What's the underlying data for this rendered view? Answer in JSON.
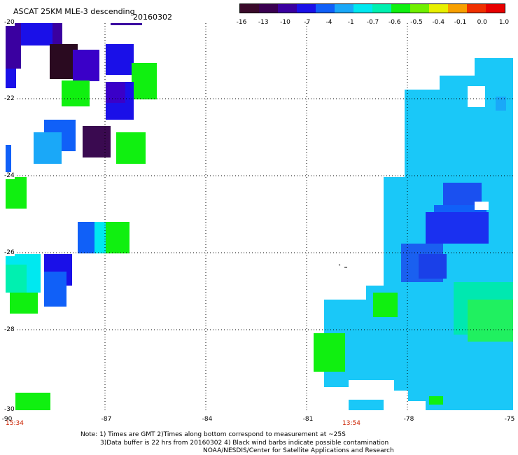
{
  "header": {
    "title": "ASCAT 25KM MLE-3 descending",
    "date": "20160302"
  },
  "colorbar": {
    "labels": [
      "-16",
      "-13",
      "-10",
      "-7",
      "-4",
      "-1",
      "-0.7",
      "-0.6",
      "-0.5",
      "-0.4",
      "-0.1",
      "0.0",
      "1.0"
    ],
    "colors": [
      "#3a0a2a",
      "#3a0050",
      "#3a00a0",
      "#1a10e8",
      "#1060f8",
      "#1aa8f8",
      "#00e8f0",
      "#00f0b0",
      "#10f010",
      "#70f000",
      "#e8f000",
      "#f8a000",
      "#f03000",
      "#e80000"
    ]
  },
  "axes": {
    "x_ticks": [
      "-90",
      "-87",
      "-84",
      "-81",
      "-78",
      "-75"
    ],
    "y_ticks": [
      "-20",
      "-22",
      "-24",
      "-26",
      "-28",
      "-30"
    ]
  },
  "times": {
    "left": "15:34",
    "middle": "13:54"
  },
  "notes": {
    "line1": "Note: 1) Times are GMT 2)Times along bottom correspond to measurement at ~25S",
    "line2": "3)Data buffer is 22 hrs from 20160302 4) Black wind barbs indicate possible contamination",
    "line3": "NOAA/NESDIS/Center for Satellite Applications and Research"
  }
}
